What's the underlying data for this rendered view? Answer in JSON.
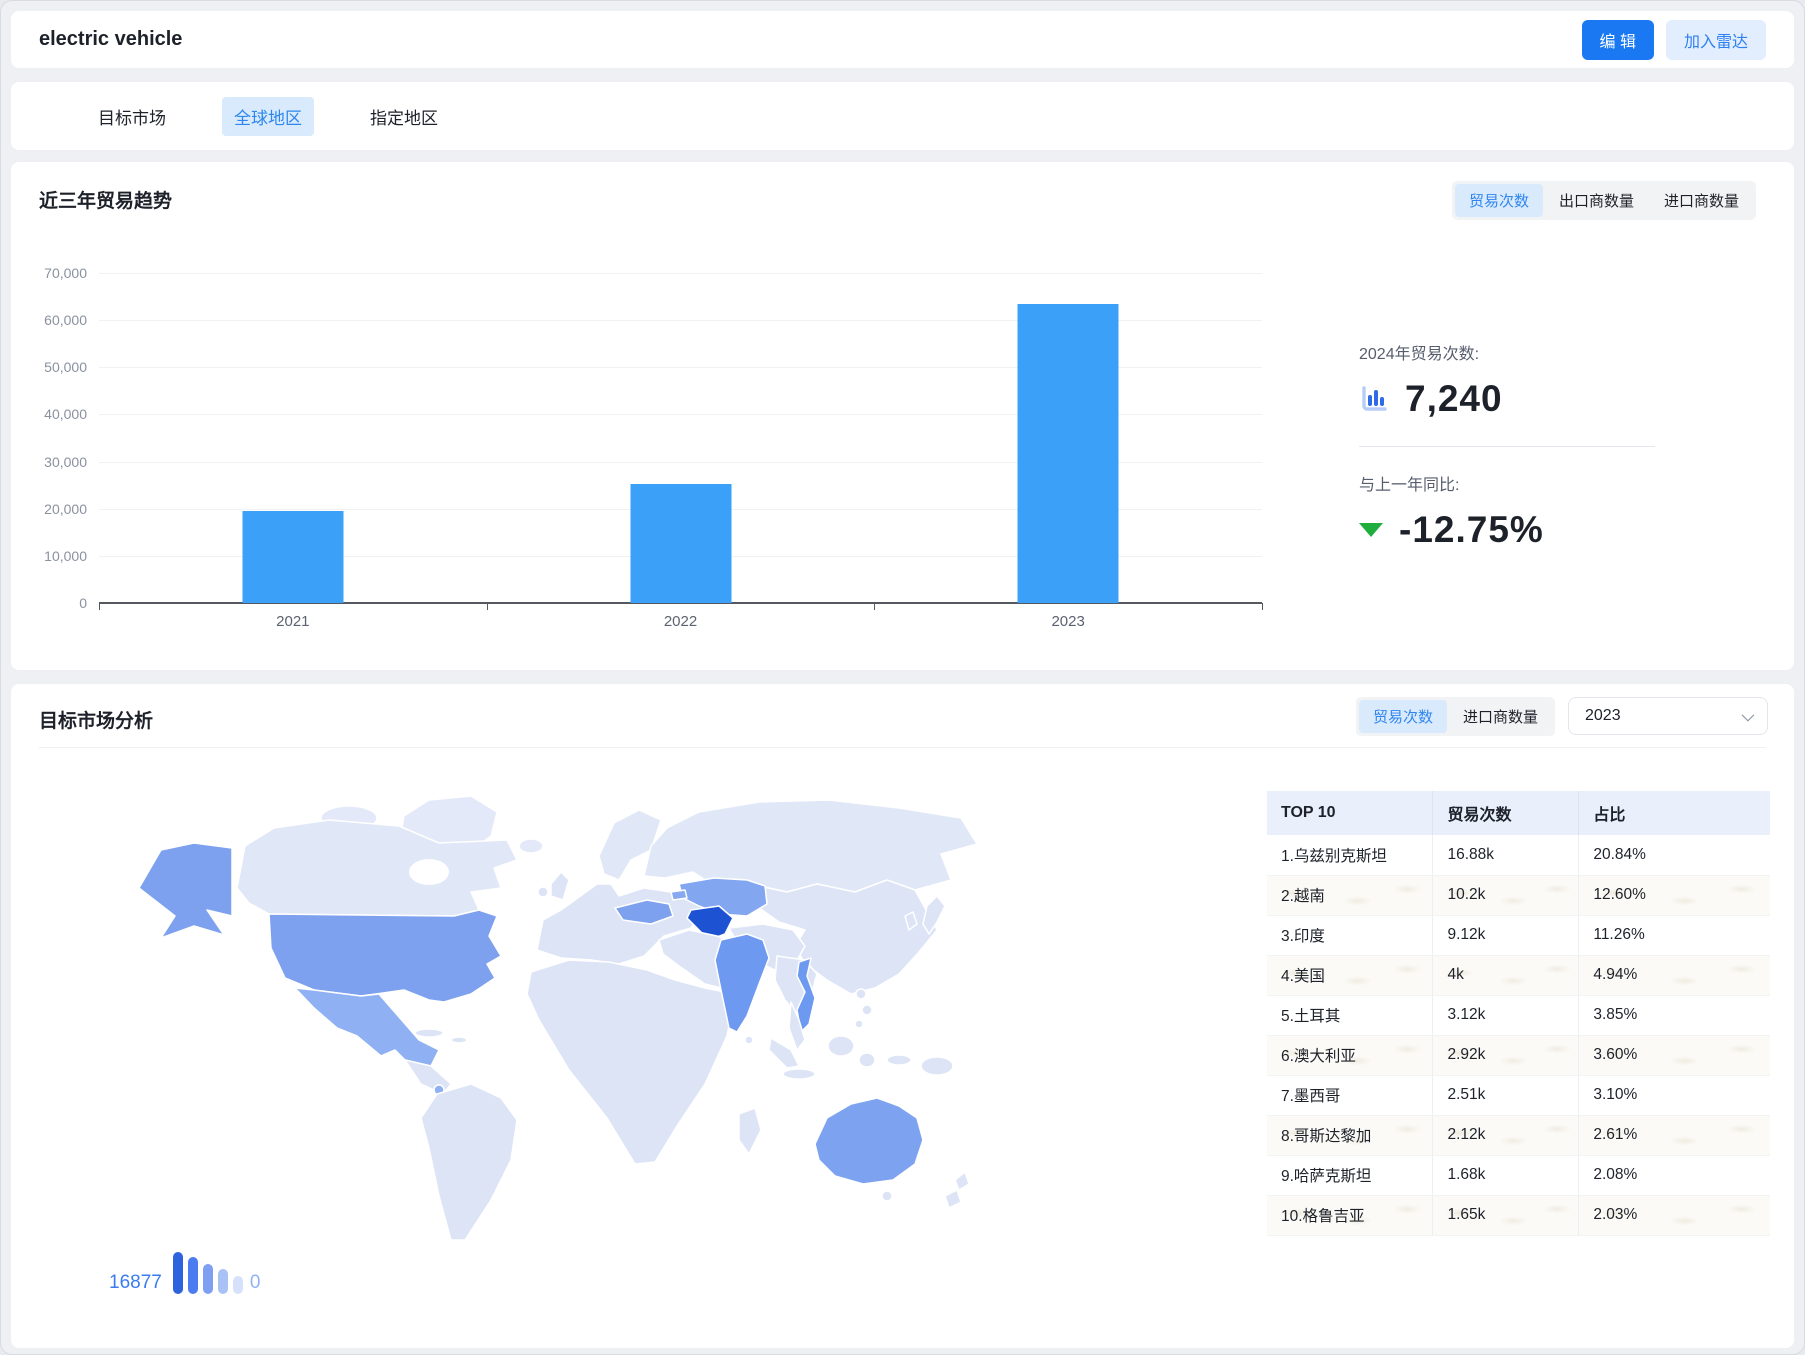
{
  "header": {
    "title": "electric vehicle",
    "edit_button": "编 辑",
    "radar_button": "加入雷达"
  },
  "tabs": [
    {
      "label": "目标市场",
      "active": false
    },
    {
      "label": "全球地区",
      "active": true
    },
    {
      "label": "指定地区",
      "active": false
    }
  ],
  "trend_section": {
    "title": "近三年贸易趋势",
    "toggles": [
      "贸易次数",
      "出口商数量",
      "进口商数量"
    ],
    "active_toggle": "贸易次数",
    "stats": {
      "year_label": "2024年贸易次数:",
      "year_value": "7,240",
      "yoy_label": "与上一年同比:",
      "yoy_value": "-12.75%",
      "yoy_direction": "down",
      "yoy_color": "#1fae3d"
    }
  },
  "chart_data": {
    "type": "bar",
    "categories": [
      "2021",
      "2022",
      "2023"
    ],
    "values": [
      19500,
      25300,
      63500
    ],
    "title": "近三年贸易趋势",
    "xlabel": "",
    "ylabel": "",
    "ylim": [
      0,
      70000
    ],
    "yticks": [
      0,
      10000,
      20000,
      30000,
      40000,
      50000,
      60000,
      70000
    ],
    "bar_color": "#3ba0f8",
    "grid": true,
    "legend_position": "none"
  },
  "market_section": {
    "title": "目标市场分析",
    "toggles": [
      "贸易次数",
      "进口商数量"
    ],
    "active_toggle": "贸易次数",
    "year_select": "2023",
    "map_legend": {
      "max": "16877",
      "min": "0",
      "bar_colors": [
        "#2e63de",
        "#4b7df0",
        "#7fa0f2",
        "#a9c2f6",
        "#d6e2fb"
      ]
    },
    "map_colors": {
      "usa": "#7da1ee",
      "mexico": "#8fb0f2",
      "costa-rica": "#8fb0f2",
      "kazakhstan": "#82a6ef",
      "uzbekistan": "#1d53d3",
      "turkey": "#7da1ee",
      "georgia": "#86a9ef",
      "india": "#6d99f0",
      "vietnam": "#6d99f0",
      "australia": "#7da3f0"
    },
    "table": {
      "headers": [
        "TOP 10",
        "贸易次数",
        "占比"
      ],
      "rows": [
        {
          "name": "1.乌兹别克斯坦",
          "trades": "16.88k",
          "share": "20.84%"
        },
        {
          "name": "2.越南",
          "trades": "10.2k",
          "share": "12.60%"
        },
        {
          "name": "3.印度",
          "trades": "9.12k",
          "share": "11.26%"
        },
        {
          "name": "4.美国",
          "trades": "4k",
          "share": "4.94%"
        },
        {
          "name": "5.土耳其",
          "trades": "3.12k",
          "share": "3.85%"
        },
        {
          "name": "6.澳大利亚",
          "trades": "2.92k",
          "share": "3.60%"
        },
        {
          "name": "7.墨西哥",
          "trades": "2.51k",
          "share": "3.10%"
        },
        {
          "name": "8.哥斯达黎加",
          "trades": "2.12k",
          "share": "2.61%"
        },
        {
          "name": "9.哈萨克斯坦",
          "trades": "1.68k",
          "share": "2.08%"
        },
        {
          "name": "10.格鲁吉亚",
          "trades": "1.65k",
          "share": "2.03%"
        }
      ]
    }
  }
}
